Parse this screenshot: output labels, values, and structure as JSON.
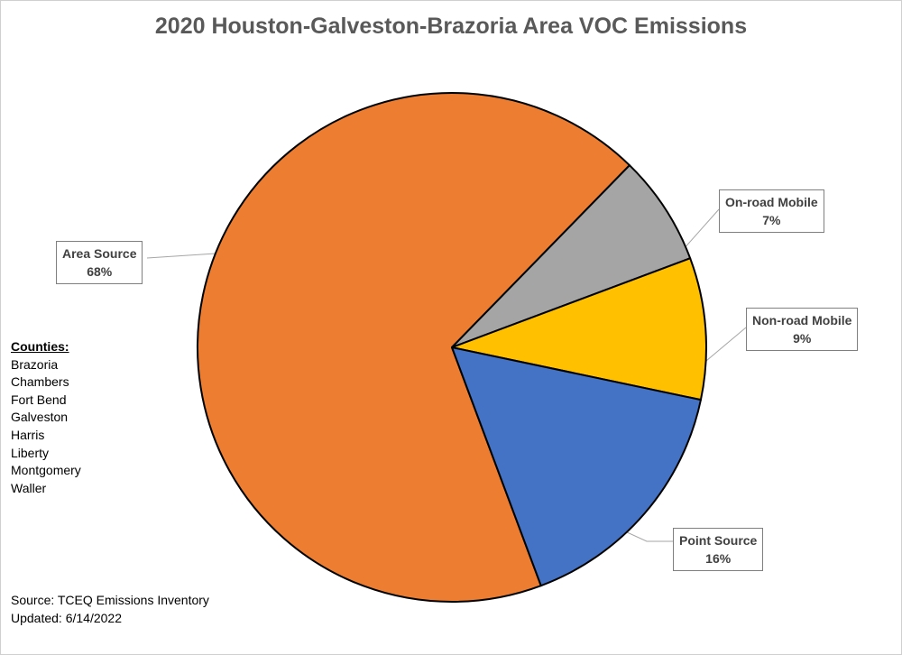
{
  "chart_data": {
    "type": "pie",
    "title": "2020 Houston-Galveston-Brazoria Area VOC Emissions",
    "slices": [
      {
        "name": "Area Source",
        "value": 68,
        "label": "68%",
        "color": "#ED7D31"
      },
      {
        "name": "On-road Mobile",
        "value": 7,
        "label": "7%",
        "color": "#A5A5A5"
      },
      {
        "name": "Non-road Mobile",
        "value": 9,
        "label": "9%",
        "color": "#FFC000"
      },
      {
        "name": "Point Source",
        "value": 16,
        "label": "16%",
        "color": "#4472C4"
      }
    ]
  },
  "counties": {
    "heading": "Counties:",
    "list": [
      "Brazoria",
      "Chambers",
      "Fort Bend",
      "Galveston",
      "Harris",
      "Liberty",
      "Montgomery",
      "Waller"
    ]
  },
  "footer": {
    "source": "Source: TCEQ Emissions Inventory",
    "updated": "Updated: 6/14/2022"
  }
}
